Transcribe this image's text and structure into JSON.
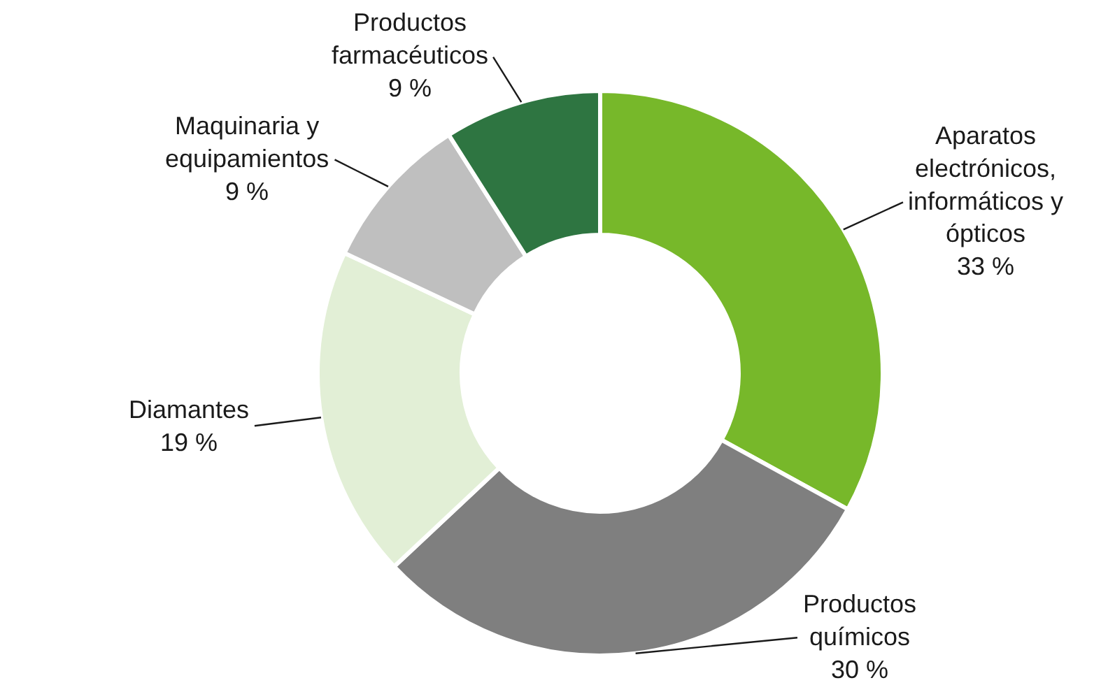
{
  "chart_data": {
    "type": "donut",
    "categories": [
      "Aparatos electrónicos, informáticos y ópticos",
      "Productos químicos",
      "Diamantes",
      "Maquinaria y equipamientos",
      "Productos farmacéuticos"
    ],
    "values": [
      33,
      30,
      19,
      9,
      9
    ],
    "value_labels": [
      "33 %",
      "30 %",
      "19 %",
      "9 %",
      "9 %"
    ],
    "colors": [
      "#77b82a",
      "#7f7f7f",
      "#e2efd6",
      "#bfbfbf",
      "#2e7541"
    ]
  }
}
